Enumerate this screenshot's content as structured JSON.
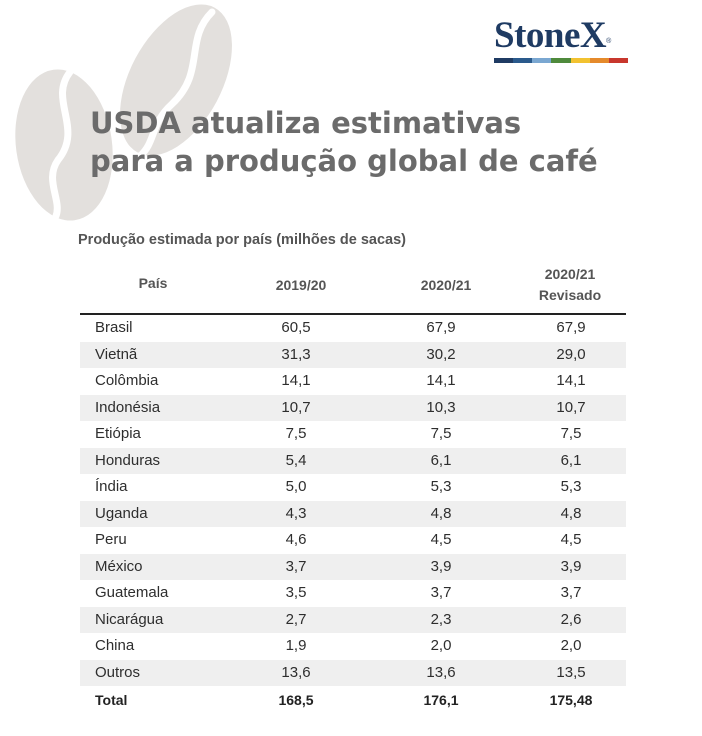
{
  "brand": {
    "logo_text": "StoneX",
    "trademark": "®",
    "stripe_colors": [
      "#1f3b63",
      "#2a5a8c",
      "#7aa7d1",
      "#4f8a3c",
      "#f2c230",
      "#e58a2b",
      "#c8372d"
    ]
  },
  "title": {
    "line1": "USDA atualiza estimativas",
    "line2": "para a produção global de café"
  },
  "table": {
    "caption": "Produção estimada por país (milhões de sacas)",
    "headers": {
      "country": "País",
      "col1": "2019/20",
      "col2": "2020/21",
      "col3_line1": "2020/21",
      "col3_line2": "Revisado"
    },
    "rows": [
      {
        "country": "Brasil",
        "v1": "60,5",
        "v2": "67,9",
        "v3": "67,9"
      },
      {
        "country": "Vietnã",
        "v1": "31,3",
        "v2": "30,2",
        "v3": "29,0"
      },
      {
        "country": "Colômbia",
        "v1": "14,1",
        "v2": "14,1",
        "v3": "14,1"
      },
      {
        "country": "Indonésia",
        "v1": "10,7",
        "v2": "10,3",
        "v3": "10,7"
      },
      {
        "country": "Etiópia",
        "v1": "7,5",
        "v2": "7,5",
        "v3": "7,5"
      },
      {
        "country": "Honduras",
        "v1": "5,4",
        "v2": "6,1",
        "v3": "6,1"
      },
      {
        "country": "Índia",
        "v1": "5,0",
        "v2": "5,3",
        "v3": "5,3"
      },
      {
        "country": "Uganda",
        "v1": "4,3",
        "v2": "4,8",
        "v3": "4,8"
      },
      {
        "country": "Peru",
        "v1": "4,6",
        "v2": "4,5",
        "v3": "4,5"
      },
      {
        "country": "México",
        "v1": "3,7",
        "v2": "3,9",
        "v3": "3,9"
      },
      {
        "country": "Guatemala",
        "v1": "3,5",
        "v2": "3,7",
        "v3": "3,7"
      },
      {
        "country": "Nicarágua",
        "v1": "2,7",
        "v2": "2,3",
        "v3": "2,6"
      },
      {
        "country": "China",
        "v1": "1,9",
        "v2": "2,0",
        "v3": "2,0"
      },
      {
        "country": "Outros",
        "v1": "13,6",
        "v2": "13,6",
        "v3": "13,5"
      }
    ],
    "total": {
      "country": "Total",
      "v1": "168,5",
      "v2": "176,1",
      "v3": "175,48"
    }
  }
}
